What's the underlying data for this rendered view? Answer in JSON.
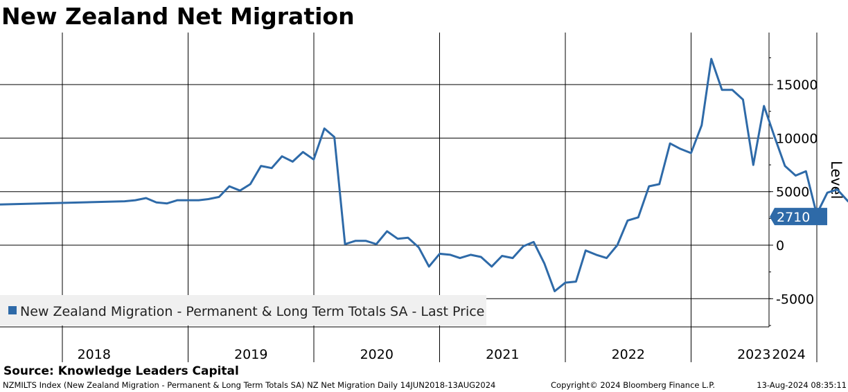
{
  "title": "New Zealand Net Migration",
  "source": "Source: Knowledge Leaders Capital",
  "footer": {
    "left": "NZMILTS Index (New Zealand Migration - Permanent & Long Term Totals SA) NZ Net Migration  Daily 14JUN2018-13AUG2024",
    "middle": "Copyright© 2024 Bloomberg Finance L.P.",
    "right": "13-Aug-2024 08:35:11"
  },
  "colors": {
    "line": "#2e6aa8",
    "last_box": "#2e6aa8",
    "legend_bg": "#f0f0f0"
  },
  "chart_data": {
    "type": "line",
    "ylabel": "Level",
    "ylim": [
      -7500,
      19000
    ],
    "yticks": [
      -5000,
      0,
      5000,
      10000,
      15000
    ],
    "ytick_labels": [
      "-5000",
      "0",
      "5000",
      "10000",
      "15000"
    ],
    "years": [
      "2018",
      "2019",
      "2020",
      "2021",
      "2022",
      "2023",
      "2024"
    ],
    "x_range": [
      "2018-06-14",
      "2024-08-13"
    ],
    "last_value_label": "2710",
    "grid": true,
    "legend_position": "bottom-left",
    "series": [
      {
        "name": "New Zealand Migration - Permanent & Long Term Totals SA - Last Price",
        "points": [
          [
            "2018-06-14",
            3800
          ],
          [
            "2018-07-01",
            4100
          ],
          [
            "2018-08-01",
            4200
          ],
          [
            "2018-09-01",
            4400
          ],
          [
            "2018-10-01",
            4000
          ],
          [
            "2018-11-01",
            3900
          ],
          [
            "2018-12-01",
            4200
          ],
          [
            "2019-01-01",
            4200
          ],
          [
            "2019-02-01",
            4200
          ],
          [
            "2019-03-01",
            4300
          ],
          [
            "2019-04-01",
            4500
          ],
          [
            "2019-05-01",
            5500
          ],
          [
            "2019-06-01",
            5100
          ],
          [
            "2019-07-01",
            5700
          ],
          [
            "2019-08-01",
            7400
          ],
          [
            "2019-09-01",
            7200
          ],
          [
            "2019-10-01",
            8300
          ],
          [
            "2019-11-01",
            7800
          ],
          [
            "2019-12-01",
            8700
          ],
          [
            "2020-01-01",
            8000
          ],
          [
            "2020-02-01",
            10900
          ],
          [
            "2020-03-01",
            10100
          ],
          [
            "2020-04-01",
            100
          ],
          [
            "2020-05-01",
            400
          ],
          [
            "2020-06-01",
            400
          ],
          [
            "2020-07-01",
            100
          ],
          [
            "2020-08-01",
            1300
          ],
          [
            "2020-09-01",
            600
          ],
          [
            "2020-10-01",
            700
          ],
          [
            "2020-11-01",
            -200
          ],
          [
            "2020-12-01",
            -2000
          ],
          [
            "2021-01-01",
            -800
          ],
          [
            "2021-02-01",
            -900
          ],
          [
            "2021-03-01",
            -1200
          ],
          [
            "2021-04-01",
            -900
          ],
          [
            "2021-05-01",
            -1100
          ],
          [
            "2021-06-01",
            -2000
          ],
          [
            "2021-07-01",
            -1000
          ],
          [
            "2021-08-01",
            -1200
          ],
          [
            "2021-09-01",
            -100
          ],
          [
            "2021-10-01",
            300
          ],
          [
            "2021-11-01",
            -1700
          ],
          [
            "2021-12-01",
            -4300
          ],
          [
            "2022-01-01",
            -3500
          ],
          [
            "2022-02-01",
            -3400
          ],
          [
            "2022-03-01",
            -500
          ],
          [
            "2022-04-01",
            -900
          ],
          [
            "2022-05-01",
            -1200
          ],
          [
            "2022-06-01",
            0
          ],
          [
            "2022-07-01",
            2300
          ],
          [
            "2022-08-01",
            2600
          ],
          [
            "2022-09-01",
            5500
          ],
          [
            "2022-10-01",
            5700
          ],
          [
            "2022-11-01",
            9500
          ],
          [
            "2022-12-01",
            9000
          ],
          [
            "2023-01-01",
            8600
          ],
          [
            "2023-02-01",
            11200
          ],
          [
            "2023-03-01",
            17400
          ],
          [
            "2023-04-01",
            14500
          ],
          [
            "2023-05-01",
            14500
          ],
          [
            "2023-06-01",
            13600
          ],
          [
            "2023-07-01",
            7500
          ],
          [
            "2023-08-01",
            13000
          ],
          [
            "2023-09-01",
            10100
          ],
          [
            "2023-10-01",
            7400
          ],
          [
            "2023-11-01",
            6500
          ],
          [
            "2023-12-01",
            6900
          ],
          [
            "2024-01-01",
            2900
          ],
          [
            "2024-02-01",
            4900
          ],
          [
            "2024-03-01",
            5200
          ],
          [
            "2024-04-01",
            4100
          ],
          [
            "2024-05-01",
            3500
          ],
          [
            "2024-06-01",
            2710
          ]
        ]
      }
    ]
  }
}
